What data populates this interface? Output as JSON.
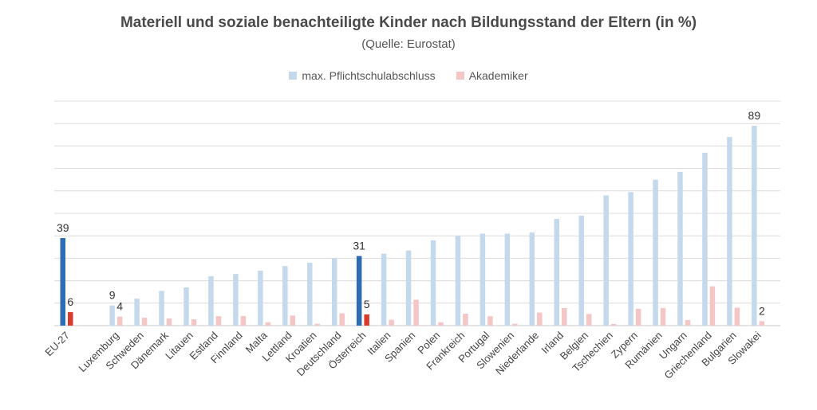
{
  "chart_data": {
    "type": "bar",
    "title": "Materiell und soziale benachteiligte Kinder nach Bildungsstand der Eltern (in %)",
    "subtitle": "(Quelle: Eurostat)",
    "categories": [
      "EU-27",
      "Luxemburg",
      "Schweden",
      "Dänemark",
      "Litauen",
      "Estland",
      "Finnland",
      "Malta",
      "Lettland",
      "Kroatien",
      "Deutschland",
      "Österreich",
      "Italien",
      "Spanien",
      "Polen",
      "Frankreich",
      "Portugal",
      "Slowenien",
      "Niederlande",
      "Irland",
      "Belgien",
      "Tschechien",
      "Zypern",
      "Rumänien",
      "Ungarn",
      "Griechenland",
      "Bulgarien",
      "Slowakei"
    ],
    "series": [
      {
        "name": "max. Pflichtschulabschluss",
        "color": "#c5d9ec",
        "highlight_color": "#2e6db4",
        "values": [
          39,
          9,
          12,
          15.5,
          17,
          22,
          23,
          24.5,
          26.5,
          28,
          30,
          31,
          32,
          33.5,
          38,
          40,
          41,
          41,
          41.5,
          47.5,
          49,
          58,
          59.5,
          65,
          68.5,
          77,
          84,
          89
        ]
      },
      {
        "name": "Akademiker",
        "color": "#f4c6c6",
        "highlight_color": "#d93a2b",
        "values": [
          6,
          4,
          3.5,
          3.2,
          2.8,
          4.2,
          4.3,
          1.5,
          4.5,
          0.8,
          5.5,
          5,
          2.6,
          11.5,
          1.5,
          5.3,
          4.2,
          0.8,
          5.8,
          7.8,
          5.2,
          0.7,
          7.5,
          7.8,
          2.5,
          17.5,
          8,
          2
        ]
      }
    ],
    "highlighted_categories": [
      "EU-27",
      "Österreich"
    ],
    "data_labels": [
      {
        "category": "EU-27",
        "series": 0,
        "text": "39"
      },
      {
        "category": "EU-27",
        "series": 1,
        "text": "6"
      },
      {
        "category": "Luxemburg",
        "series": 0,
        "text": "9"
      },
      {
        "category": "Luxemburg",
        "series": 1,
        "text": "4"
      },
      {
        "category": "Österreich",
        "series": 0,
        "text": "31"
      },
      {
        "category": "Österreich",
        "series": 1,
        "text": "5"
      },
      {
        "category": "Slowakei",
        "series": 0,
        "text": "89"
      },
      {
        "category": "Slowakei",
        "series": 1,
        "text": "2"
      }
    ],
    "ylim": [
      0,
      100
    ],
    "y_gridlines": [
      0,
      10,
      20,
      30,
      40,
      50,
      60,
      70,
      80,
      90,
      100
    ],
    "y_tick_labels_shown": false,
    "grid": true,
    "legend_position": "top"
  }
}
